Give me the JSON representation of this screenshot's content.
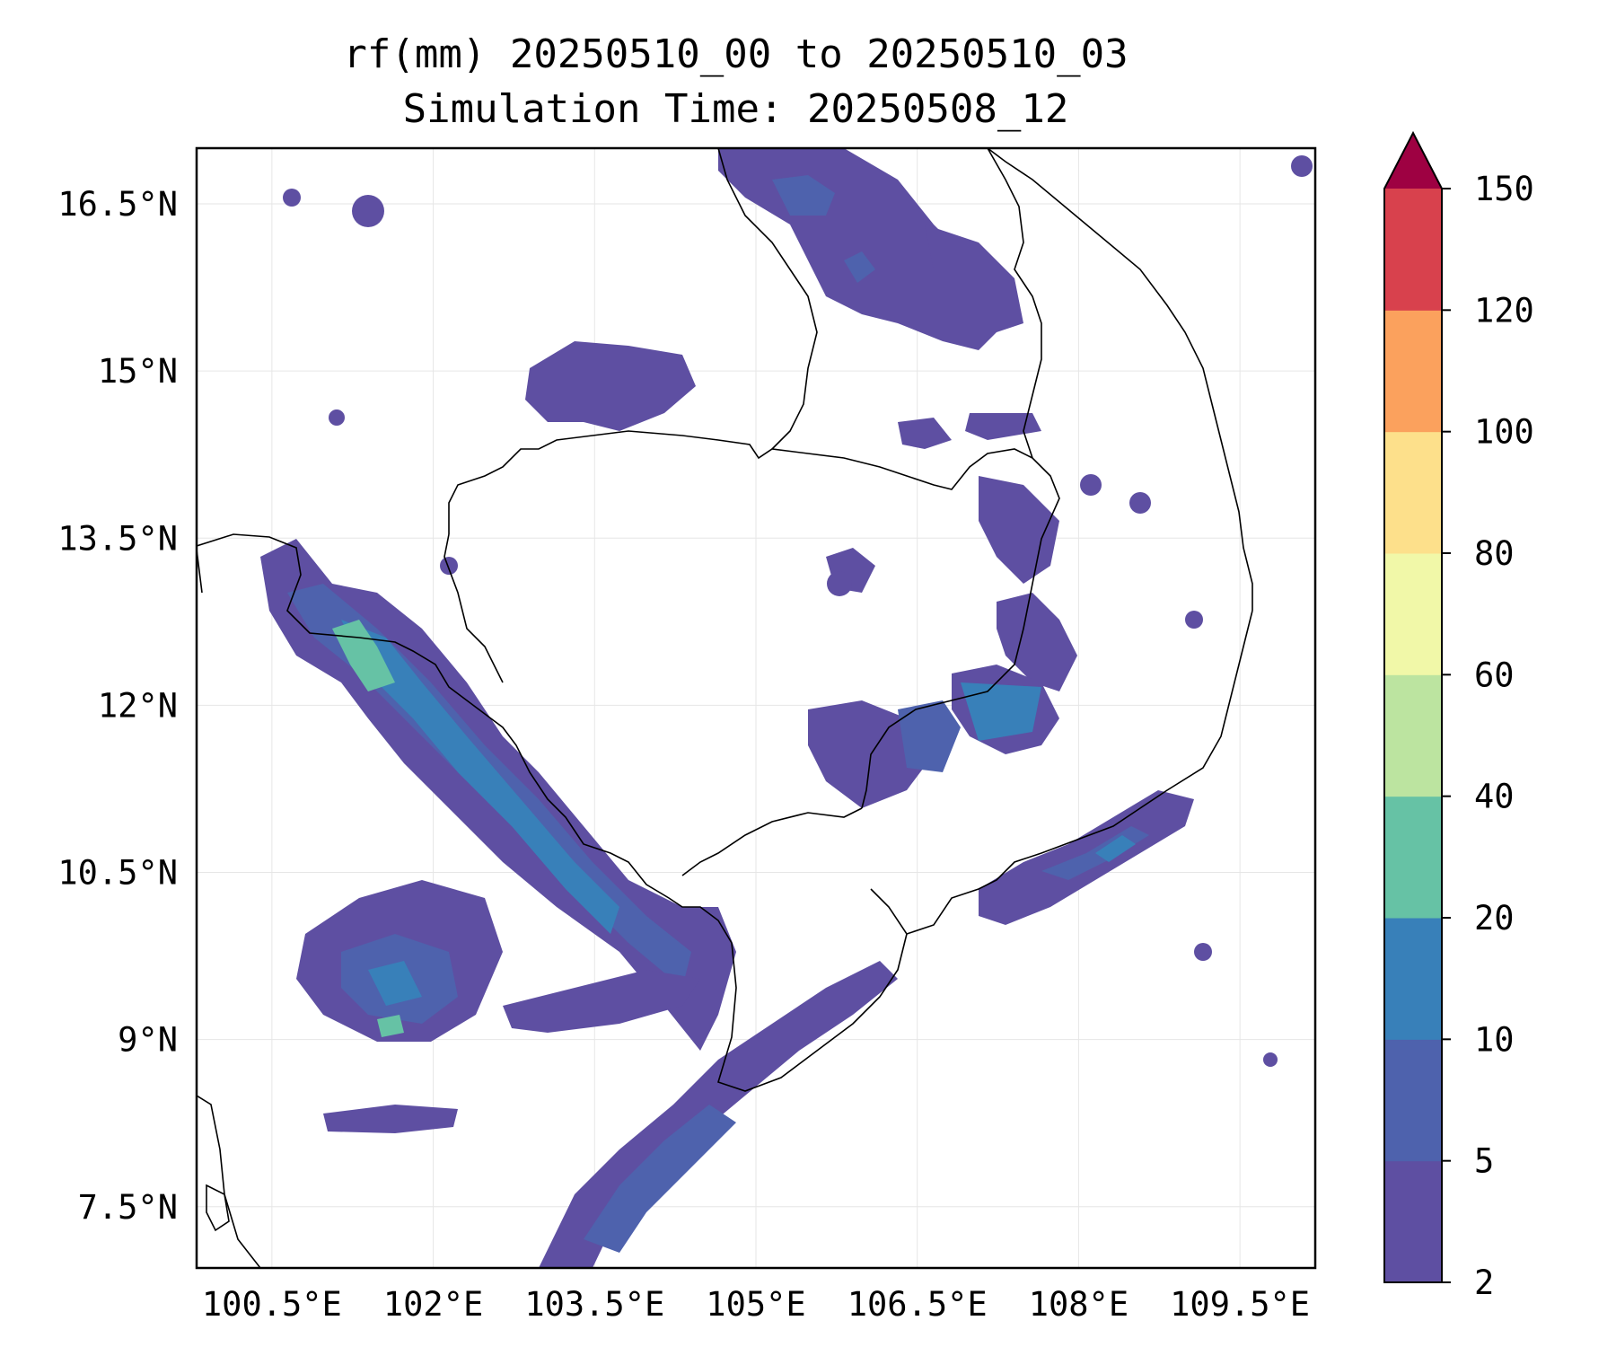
{
  "title": {
    "line1": "rf(mm) 20250510_00 to 20250510_03",
    "line2": "Simulation Time: 20250508_12"
  },
  "map": {
    "lon_range": [
      99.8,
      110.2
    ],
    "lat_range": [
      6.95,
      17.0
    ],
    "lon_ticks": [
      {
        "value": 100.5,
        "label": "100.5°E"
      },
      {
        "value": 102.0,
        "label": "102°E"
      },
      {
        "value": 103.5,
        "label": "103.5°E"
      },
      {
        "value": 105.0,
        "label": "105°E"
      },
      {
        "value": 106.5,
        "label": "106.5°E"
      },
      {
        "value": 108.0,
        "label": "108°E"
      },
      {
        "value": 109.5,
        "label": "109.5°E"
      }
    ],
    "lat_ticks": [
      {
        "value": 7.5,
        "label": "7.5°N"
      },
      {
        "value": 9.0,
        "label": "9°N"
      },
      {
        "value": 10.5,
        "label": "10.5°N"
      },
      {
        "value": 12.0,
        "label": "12°N"
      },
      {
        "value": 13.5,
        "label": "13.5°N"
      },
      {
        "value": 15.0,
        "label": "15°N"
      },
      {
        "value": 16.5,
        "label": "16.5°N"
      }
    ],
    "grid": true
  },
  "colorbar": {
    "levels": [
      "2",
      "5",
      "10",
      "20",
      "40",
      "60",
      "80",
      "100",
      "120",
      "150"
    ],
    "colors": [
      "#5e4fa2",
      "#4e62ad",
      "#3880b9",
      "#66c2a5",
      "#bce4a0",
      "#f1f8a8",
      "#fde08b",
      "#fba15d",
      "#d8414d"
    ],
    "extend_color": "#9e0142",
    "extend": "max"
  }
}
